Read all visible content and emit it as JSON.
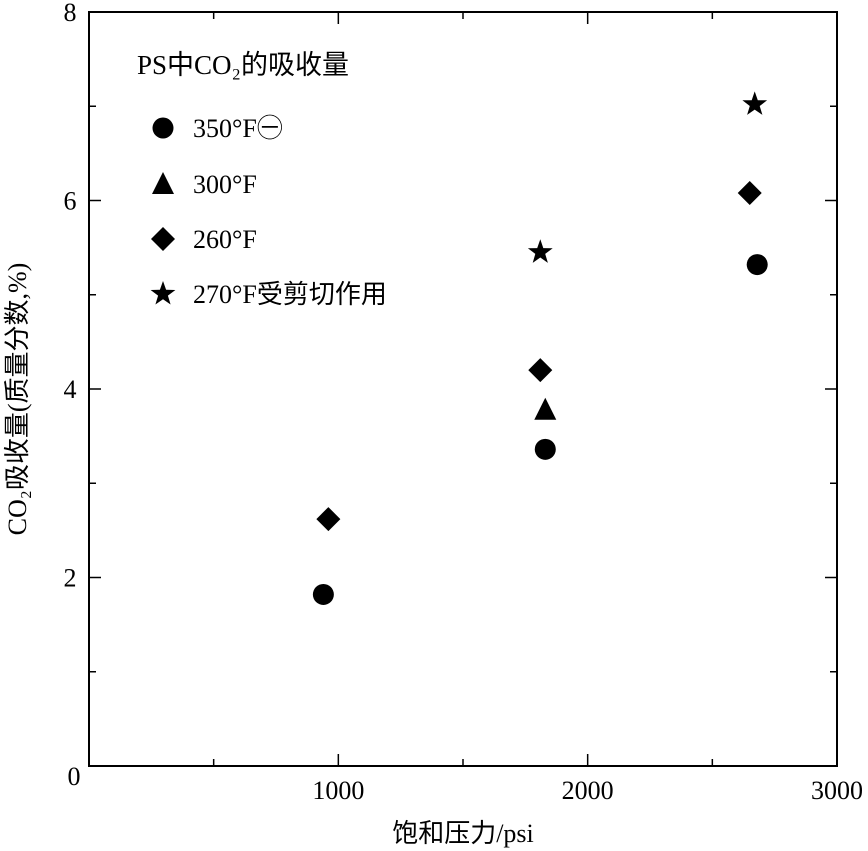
{
  "chart_data": {
    "type": "scatter",
    "title": "PS中CO₂的吸收量",
    "xlabel": "饱和压力/psi",
    "ylabel": "CO₂吸收量(质量分数,%)",
    "xlim": [
      0,
      3000
    ],
    "ylim": [
      0,
      8
    ],
    "x_ticks": [
      0,
      1000,
      2000,
      3000
    ],
    "x_tick_labels": [
      "0",
      "1000",
      "2000",
      "3000"
    ],
    "y_ticks": [
      2,
      4,
      6,
      8
    ],
    "y_tick_labels": [
      "2",
      "4",
      "6",
      "8"
    ],
    "grid": false,
    "legend_position": "top-left",
    "series": [
      {
        "name": "350°F㊀",
        "marker": "circle",
        "x": [
          940,
          1830,
          2680
        ],
        "y": [
          1.82,
          3.36,
          5.32
        ]
      },
      {
        "name": "300°F",
        "marker": "triangle",
        "x": [
          1830
        ],
        "y": [
          3.78
        ]
      },
      {
        "name": "260°F",
        "marker": "diamond",
        "x": [
          960,
          1810,
          2650
        ],
        "y": [
          2.62,
          4.2,
          6.08
        ]
      },
      {
        "name": "270°F受剪切作用",
        "marker": "star",
        "x": [
          1810,
          2670
        ],
        "y": [
          5.45,
          7.02
        ]
      }
    ]
  }
}
